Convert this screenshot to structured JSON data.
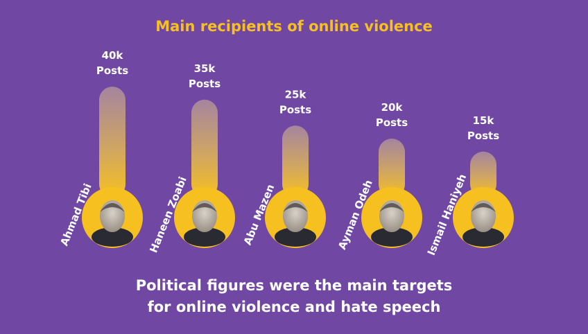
{
  "title": "Main recipients of online violence",
  "caption": {
    "line1": "Political figures were the main targets",
    "line2": "for online violence and hate speech"
  },
  "colors": {
    "background": "#7048a3",
    "accent": "#f6c021",
    "text": "#ffffff"
  },
  "chart_data": {
    "type": "bar",
    "categories": [
      "Ahmad Tibi",
      "Haneen Zoabi",
      "Abu Mazen",
      "Ayman Odeh",
      "Ismail Haniyeh"
    ],
    "values": [
      40,
      35,
      25,
      20,
      15
    ],
    "value_labels": [
      "40k",
      "35k",
      "25k",
      "20k",
      "15k"
    ],
    "unit_label": "Posts",
    "ylim": [
      0,
      40
    ]
  }
}
